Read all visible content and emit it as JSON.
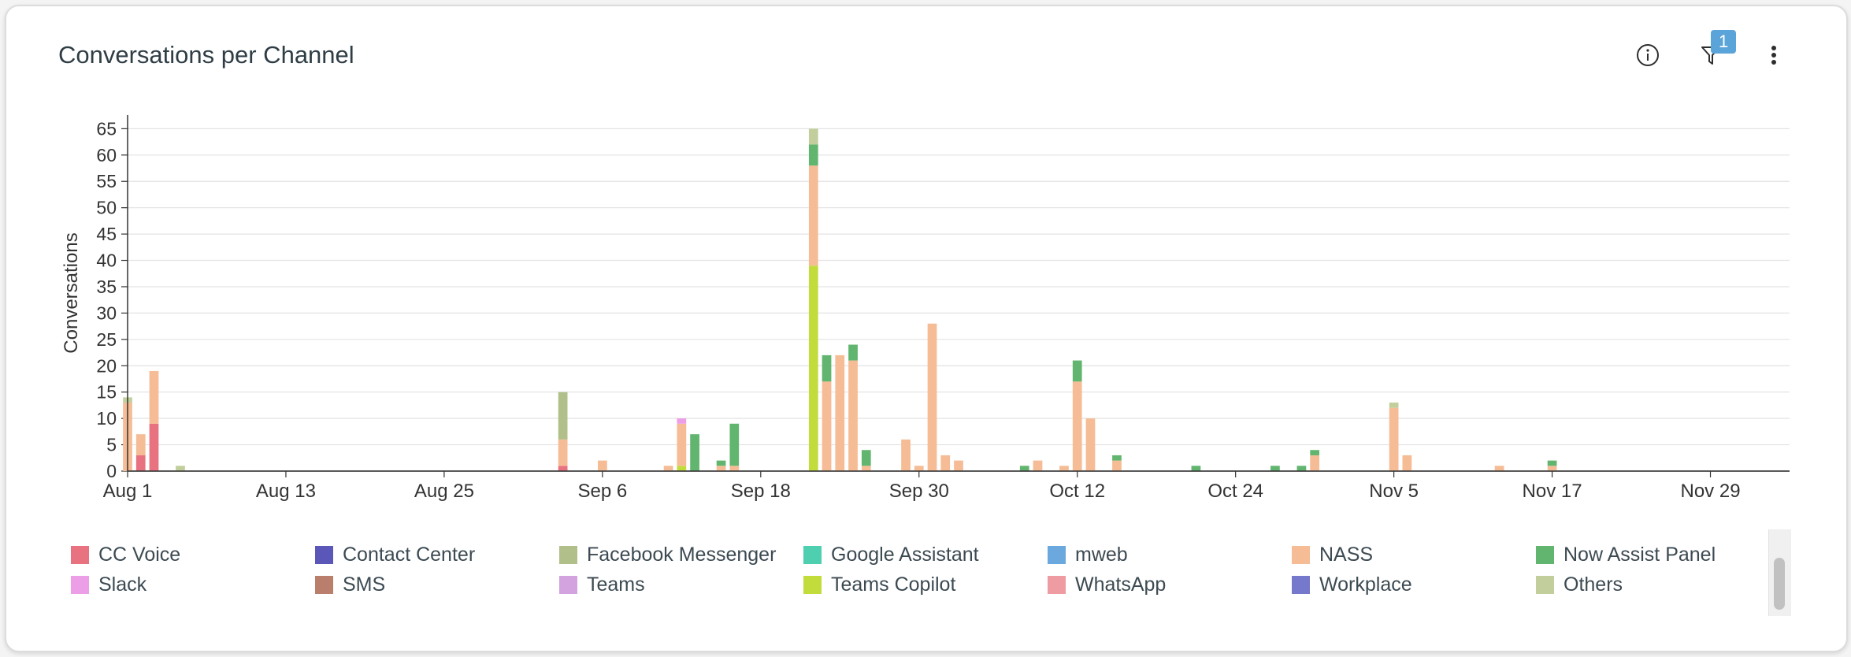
{
  "header": {
    "title": "Conversations per Channel",
    "filter_count": "1"
  },
  "chart_data": {
    "type": "bar",
    "stacked": true,
    "title": "Conversations per Channel",
    "ylabel": "Conversations",
    "xlabel": "",
    "ylim": [
      0,
      67
    ],
    "yticks": [
      0,
      5,
      10,
      15,
      20,
      25,
      30,
      35,
      40,
      45,
      50,
      55,
      60,
      65
    ],
    "grid": true,
    "legend_position": "bottom",
    "x_range": [
      "Aug 1",
      "Dec 5"
    ],
    "x_tick_labels": [
      "Aug 1",
      "Aug 13",
      "Aug 25",
      "Sep 6",
      "Sep 18",
      "Sep 30",
      "Oct 12",
      "Oct 24",
      "Nov 5",
      "Nov 17",
      "Nov 29"
    ],
    "series": [
      {
        "name": "CC Voice",
        "color": "#e8727f"
      },
      {
        "name": "Contact Center",
        "color": "#5a57b8"
      },
      {
        "name": "Facebook Messenger",
        "color": "#b1c08b"
      },
      {
        "name": "Google Assistant",
        "color": "#4dcfb0"
      },
      {
        "name": "mweb",
        "color": "#6aa8dd"
      },
      {
        "name": "NASS",
        "color": "#f5bc95"
      },
      {
        "name": "Now Assist Panel",
        "color": "#62b56f"
      },
      {
        "name": "Slack",
        "color": "#ec9ee6"
      },
      {
        "name": "SMS",
        "color": "#b97e6c"
      },
      {
        "name": "Teams",
        "color": "#d3a3df"
      },
      {
        "name": "Teams Copilot",
        "color": "#c2dc3c"
      },
      {
        "name": "WhatsApp",
        "color": "#ee9ca1"
      },
      {
        "name": "Workplace",
        "color": "#7679cb"
      },
      {
        "name": "Others",
        "color": "#c2cf9c"
      }
    ],
    "bars": [
      {
        "date": "Aug 1",
        "stack": [
          [
            "NASS",
            13
          ],
          [
            "Others",
            1
          ]
        ]
      },
      {
        "date": "Aug 2",
        "stack": [
          [
            "CC Voice",
            3
          ],
          [
            "NASS",
            4
          ]
        ]
      },
      {
        "date": "Aug 3",
        "stack": [
          [
            "CC Voice",
            9
          ],
          [
            "NASS",
            10
          ]
        ]
      },
      {
        "date": "Aug 5",
        "stack": [
          [
            "Others",
            1
          ]
        ]
      },
      {
        "date": "Sep 3",
        "stack": [
          [
            "CC Voice",
            1
          ],
          [
            "NASS",
            5
          ],
          [
            "Facebook Messenger",
            9
          ]
        ]
      },
      {
        "date": "Sep 6",
        "stack": [
          [
            "NASS",
            2
          ]
        ]
      },
      {
        "date": "Sep 11",
        "stack": [
          [
            "NASS",
            1
          ]
        ]
      },
      {
        "date": "Sep 12",
        "stack": [
          [
            "Teams Copilot",
            1
          ],
          [
            "NASS",
            8
          ],
          [
            "Slack",
            1
          ]
        ]
      },
      {
        "date": "Sep 13",
        "stack": [
          [
            "Now Assist Panel",
            7
          ]
        ]
      },
      {
        "date": "Sep 15",
        "stack": [
          [
            "NASS",
            1
          ],
          [
            "Now Assist Panel",
            1
          ]
        ]
      },
      {
        "date": "Sep 16",
        "stack": [
          [
            "NASS",
            1
          ],
          [
            "Now Assist Panel",
            8
          ]
        ]
      },
      {
        "date": "Sep 22",
        "stack": [
          [
            "Teams Copilot",
            39
          ],
          [
            "NASS",
            19
          ],
          [
            "Now Assist Panel",
            4
          ],
          [
            "Others",
            3
          ]
        ]
      },
      {
        "date": "Sep 23",
        "stack": [
          [
            "NASS",
            17
          ],
          [
            "Now Assist Panel",
            5
          ]
        ]
      },
      {
        "date": "Sep 24",
        "stack": [
          [
            "NASS",
            22
          ]
        ]
      },
      {
        "date": "Sep 25",
        "stack": [
          [
            "NASS",
            21
          ],
          [
            "Now Assist Panel",
            3
          ]
        ]
      },
      {
        "date": "Sep 26",
        "stack": [
          [
            "NASS",
            1
          ],
          [
            "Now Assist Panel",
            3
          ]
        ]
      },
      {
        "date": "Sep 29",
        "stack": [
          [
            "NASS",
            6
          ]
        ]
      },
      {
        "date": "Sep 30",
        "stack": [
          [
            "NASS",
            1
          ]
        ]
      },
      {
        "date": "Oct 1",
        "stack": [
          [
            "NASS",
            28
          ]
        ]
      },
      {
        "date": "Oct 2",
        "stack": [
          [
            "NASS",
            3
          ]
        ]
      },
      {
        "date": "Oct 3",
        "stack": [
          [
            "NASS",
            2
          ]
        ]
      },
      {
        "date": "Oct 8",
        "stack": [
          [
            "Now Assist Panel",
            1
          ]
        ]
      },
      {
        "date": "Oct 9",
        "stack": [
          [
            "NASS",
            2
          ]
        ]
      },
      {
        "date": "Oct 11",
        "stack": [
          [
            "NASS",
            1
          ]
        ]
      },
      {
        "date": "Oct 12",
        "stack": [
          [
            "NASS",
            17
          ],
          [
            "Now Assist Panel",
            4
          ]
        ]
      },
      {
        "date": "Oct 13",
        "stack": [
          [
            "NASS",
            10
          ]
        ]
      },
      {
        "date": "Oct 15",
        "stack": [
          [
            "NASS",
            2
          ],
          [
            "Now Assist Panel",
            1
          ]
        ]
      },
      {
        "date": "Oct 21",
        "stack": [
          [
            "Now Assist Panel",
            1
          ]
        ]
      },
      {
        "date": "Oct 27",
        "stack": [
          [
            "Now Assist Panel",
            1
          ]
        ]
      },
      {
        "date": "Oct 29",
        "stack": [
          [
            "Now Assist Panel",
            1
          ]
        ]
      },
      {
        "date": "Oct 30",
        "stack": [
          [
            "NASS",
            3
          ],
          [
            "Now Assist Panel",
            1
          ]
        ]
      },
      {
        "date": "Nov 5",
        "stack": [
          [
            "NASS",
            12
          ],
          [
            "Others",
            1
          ]
        ]
      },
      {
        "date": "Nov 6",
        "stack": [
          [
            "NASS",
            3
          ]
        ]
      },
      {
        "date": "Nov 13",
        "stack": [
          [
            "NASS",
            1
          ]
        ]
      },
      {
        "date": "Nov 17",
        "stack": [
          [
            "NASS",
            1
          ],
          [
            "Now Assist Panel",
            1
          ]
        ]
      }
    ]
  },
  "legend": [
    {
      "label": "CC Voice",
      "color": "#e8727f"
    },
    {
      "label": "Contact Center",
      "color": "#5a57b8"
    },
    {
      "label": "Facebook Messenger",
      "color": "#b1c08b"
    },
    {
      "label": "Google Assistant",
      "color": "#4dcfb0"
    },
    {
      "label": "mweb",
      "color": "#6aa8dd"
    },
    {
      "label": "NASS",
      "color": "#f5bc95"
    },
    {
      "label": "Now Assist Panel",
      "color": "#62b56f"
    },
    {
      "label": "Slack",
      "color": "#ec9ee6"
    },
    {
      "label": "SMS",
      "color": "#b97e6c"
    },
    {
      "label": "Teams",
      "color": "#d3a3df"
    },
    {
      "label": "Teams Copilot",
      "color": "#c2dc3c"
    },
    {
      "label": "WhatsApp",
      "color": "#ee9ca1"
    },
    {
      "label": "Workplace",
      "color": "#7679cb"
    },
    {
      "label": "Others",
      "color": "#c2cf9c"
    }
  ],
  "icons": {
    "info": "info-icon",
    "filter": "filter-icon",
    "menu": "more-vertical-icon"
  }
}
